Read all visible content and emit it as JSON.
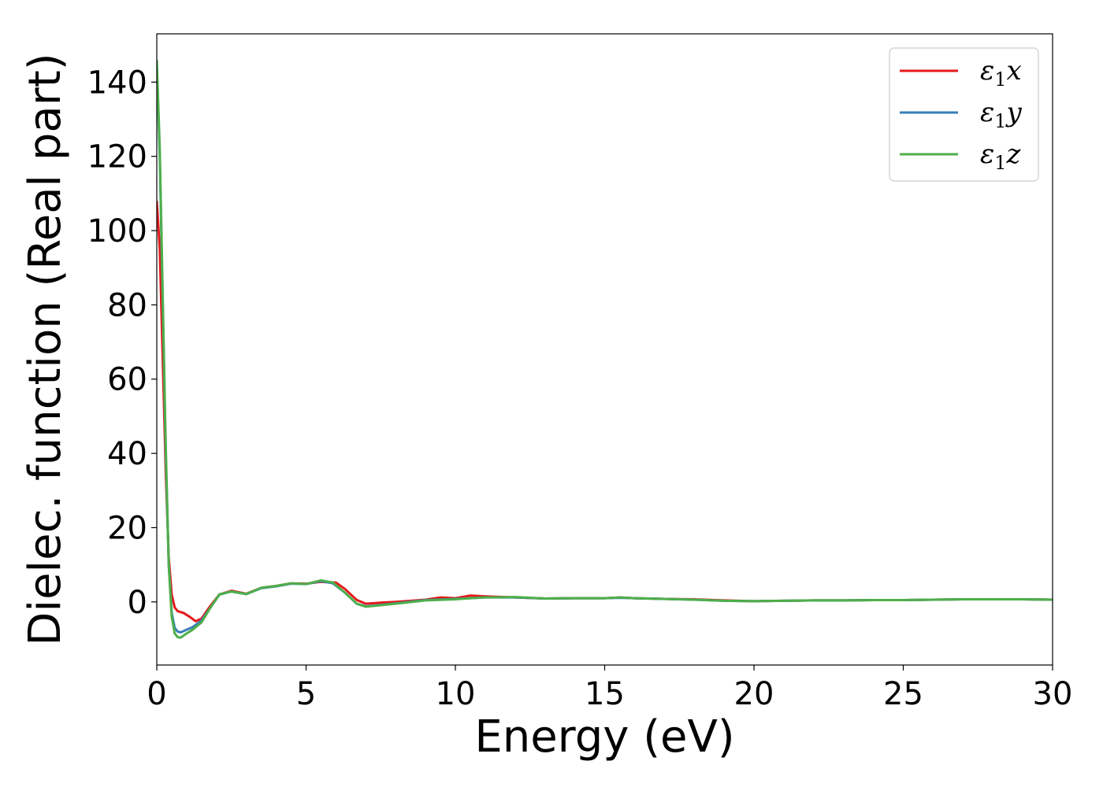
{
  "chart_data": {
    "type": "line",
    "title": "",
    "xlabel": "Energy (eV)",
    "ylabel": "Dielec. function (Real part)",
    "xlim": [
      0,
      30
    ],
    "ylim": [
      -17,
      153
    ],
    "xticks": [
      0,
      5,
      10,
      15,
      20,
      25,
      30
    ],
    "yticks": [
      0,
      20,
      40,
      60,
      80,
      100,
      120,
      140
    ],
    "grid": false,
    "legend_position": "top-right",
    "series": [
      {
        "name": "ε1x",
        "legend_base": "ε",
        "legend_sub": "1",
        "legend_tail": "x",
        "color": "#e41a1c",
        "points": [
          [
            0.0,
            108
          ],
          [
            0.1,
            95
          ],
          [
            0.2,
            65
          ],
          [
            0.3,
            35
          ],
          [
            0.4,
            12
          ],
          [
            0.5,
            2
          ],
          [
            0.6,
            -1.5
          ],
          [
            0.7,
            -2.5
          ],
          [
            0.9,
            -3
          ],
          [
            1.1,
            -4
          ],
          [
            1.3,
            -5.2
          ],
          [
            1.5,
            -4.5
          ],
          [
            1.8,
            -1
          ],
          [
            2.1,
            2
          ],
          [
            2.5,
            3
          ],
          [
            3.0,
            2.2
          ],
          [
            3.5,
            3.8
          ],
          [
            4.0,
            4.3
          ],
          [
            4.5,
            5
          ],
          [
            5.0,
            4.9
          ],
          [
            5.5,
            5.4
          ],
          [
            6.0,
            5.2
          ],
          [
            6.3,
            3.5
          ],
          [
            6.7,
            0.5
          ],
          [
            7.0,
            -0.5
          ],
          [
            7.5,
            -0.2
          ],
          [
            8.0,
            0
          ],
          [
            9.0,
            0.6
          ],
          [
            9.5,
            1.2
          ],
          [
            10.0,
            1.0
          ],
          [
            10.5,
            1.7
          ],
          [
            11.0,
            1.5
          ],
          [
            12.0,
            1.2
          ],
          [
            13.0,
            0.9
          ],
          [
            14.0,
            1.0
          ],
          [
            15.0,
            1.0
          ],
          [
            15.5,
            1.2
          ],
          [
            16.0,
            1.0
          ],
          [
            17.0,
            0.8
          ],
          [
            18.0,
            0.7
          ],
          [
            19.0,
            0.4
          ],
          [
            20.0,
            0.2
          ],
          [
            21.0,
            0.3
          ],
          [
            22.0,
            0.4
          ],
          [
            23.0,
            0.4
          ],
          [
            24.0,
            0.5
          ],
          [
            25.0,
            0.5
          ],
          [
            26.0,
            0.6
          ],
          [
            27.0,
            0.7
          ],
          [
            28.0,
            0.7
          ],
          [
            29.0,
            0.7
          ],
          [
            30.0,
            0.6
          ]
        ]
      },
      {
        "name": "ε1y",
        "legend_base": "ε",
        "legend_sub": "1",
        "legend_tail": "y",
        "color": "#377eb8",
        "points": [
          [
            0.0,
            145
          ],
          [
            0.1,
            120
          ],
          [
            0.2,
            80
          ],
          [
            0.3,
            40
          ],
          [
            0.4,
            10
          ],
          [
            0.5,
            -3
          ],
          [
            0.6,
            -7
          ],
          [
            0.7,
            -8
          ],
          [
            0.8,
            -8.2
          ],
          [
            1.0,
            -7.5
          ],
          [
            1.2,
            -6.8
          ],
          [
            1.5,
            -5
          ],
          [
            1.8,
            -1.5
          ],
          [
            2.1,
            2
          ],
          [
            2.5,
            2.8
          ],
          [
            3.0,
            2.1
          ],
          [
            3.5,
            3.7
          ],
          [
            4.0,
            4.2
          ],
          [
            4.5,
            4.9
          ],
          [
            5.0,
            4.8
          ],
          [
            5.5,
            5.6
          ],
          [
            5.9,
            5.0
          ],
          [
            6.3,
            2.5
          ],
          [
            6.7,
            -0.5
          ],
          [
            7.0,
            -1.2
          ],
          [
            7.5,
            -0.8
          ],
          [
            8.0,
            -0.4
          ],
          [
            9.0,
            0.5
          ],
          [
            10.0,
            0.8
          ],
          [
            10.5,
            1.0
          ],
          [
            11.0,
            1.2
          ],
          [
            12.0,
            1.2
          ],
          [
            13.0,
            0.9
          ],
          [
            14.0,
            1.0
          ],
          [
            15.0,
            1.0
          ],
          [
            15.5,
            1.1
          ],
          [
            16.0,
            1.0
          ],
          [
            17.0,
            0.8
          ],
          [
            18.0,
            0.6
          ],
          [
            19.0,
            0.3
          ],
          [
            20.0,
            0.2
          ],
          [
            21.0,
            0.3
          ],
          [
            22.0,
            0.4
          ],
          [
            23.0,
            0.4
          ],
          [
            24.0,
            0.5
          ],
          [
            25.0,
            0.5
          ],
          [
            26.0,
            0.6
          ],
          [
            27.0,
            0.7
          ],
          [
            28.0,
            0.7
          ],
          [
            29.0,
            0.7
          ],
          [
            30.0,
            0.6
          ]
        ]
      },
      {
        "name": "ε1z",
        "legend_base": "ε",
        "legend_sub": "1",
        "legend_tail": "z",
        "color": "#4daf4a",
        "points": [
          [
            0.0,
            146
          ],
          [
            0.1,
            122
          ],
          [
            0.2,
            82
          ],
          [
            0.3,
            42
          ],
          [
            0.4,
            10
          ],
          [
            0.5,
            -4
          ],
          [
            0.6,
            -8.5
          ],
          [
            0.7,
            -9.5
          ],
          [
            0.8,
            -9.6
          ],
          [
            1.0,
            -8.5
          ],
          [
            1.2,
            -7.5
          ],
          [
            1.5,
            -5.5
          ],
          [
            1.8,
            -1.5
          ],
          [
            2.1,
            2
          ],
          [
            2.5,
            2.8
          ],
          [
            3.0,
            2.1
          ],
          [
            3.5,
            3.8
          ],
          [
            4.0,
            4.3
          ],
          [
            4.5,
            5.0
          ],
          [
            5.0,
            4.8
          ],
          [
            5.5,
            5.8
          ],
          [
            5.9,
            5.2
          ],
          [
            6.3,
            2.5
          ],
          [
            6.7,
            -0.5
          ],
          [
            7.0,
            -1.3
          ],
          [
            7.5,
            -0.9
          ],
          [
            8.0,
            -0.5
          ],
          [
            9.0,
            0.4
          ],
          [
            10.0,
            0.7
          ],
          [
            10.5,
            1.0
          ],
          [
            11.0,
            1.2
          ],
          [
            12.0,
            1.3
          ],
          [
            13.0,
            0.9
          ],
          [
            14.0,
            1.0
          ],
          [
            15.0,
            1.0
          ],
          [
            15.5,
            1.2
          ],
          [
            16.0,
            1.0
          ],
          [
            17.0,
            0.8
          ],
          [
            18.0,
            0.6
          ],
          [
            19.0,
            0.3
          ],
          [
            20.0,
            0.2
          ],
          [
            21.0,
            0.3
          ],
          [
            22.0,
            0.4
          ],
          [
            23.0,
            0.4
          ],
          [
            24.0,
            0.5
          ],
          [
            25.0,
            0.5
          ],
          [
            26.0,
            0.6
          ],
          [
            27.0,
            0.7
          ],
          [
            28.0,
            0.7
          ],
          [
            29.0,
            0.7
          ],
          [
            30.0,
            0.6
          ]
        ]
      }
    ]
  }
}
